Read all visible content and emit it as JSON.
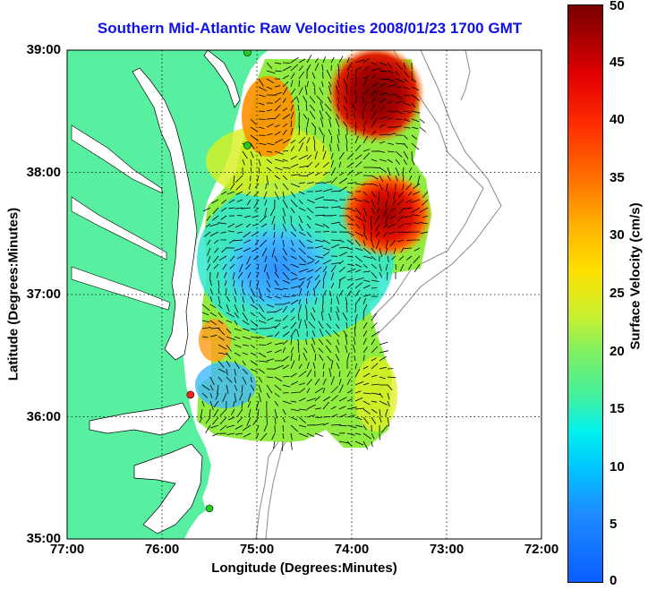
{
  "title": "Southern Mid-Atlantic Raw Velocities 2008/01/23 1700 GMT",
  "xlabel": "Longitude (Degrees:Minutes)",
  "ylabel": "Latitude (Degrees:Minutes)",
  "colorbar": {
    "label": "Surface Velocity (cm/s)",
    "ticks": [
      "0",
      "5",
      "10",
      "15",
      "20",
      "25",
      "30",
      "35",
      "40",
      "45",
      "50"
    ],
    "min": 0,
    "max": 50
  },
  "map": {
    "lon_ticks": [
      "77:00",
      "76:00",
      "75:00",
      "74:00",
      "73:00",
      "72:00"
    ],
    "lat_ticks": [
      "39:00",
      "38:00",
      "37:00",
      "36:00",
      "35:00"
    ],
    "lon_range": [
      -77,
      -72
    ],
    "lat_range": [
      35,
      39
    ],
    "land_color": "#58f0a0",
    "grid": true
  },
  "stations": [
    {
      "lon": -75.1,
      "lat": 38.98,
      "color": "#22cc22"
    },
    {
      "lon": -75.1,
      "lat": 38.22,
      "color": "#22cc22"
    },
    {
      "lon": -75.7,
      "lat": 36.18,
      "color": "#ff2020"
    },
    {
      "lon": -75.5,
      "lat": 35.25,
      "color": "#22cc22"
    }
  ]
}
